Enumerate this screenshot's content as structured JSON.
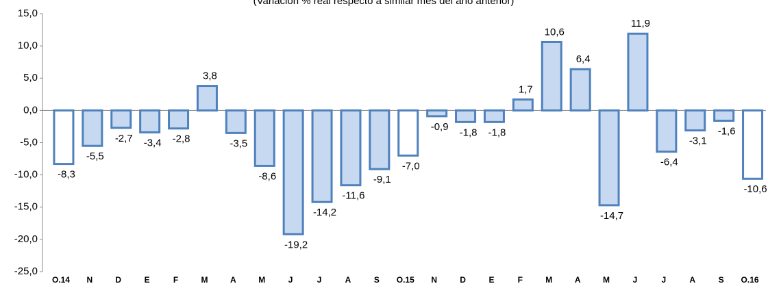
{
  "chart_data": {
    "type": "bar",
    "subtitle": "(Variación % real respecto a similar mes del año anterior)",
    "categories": [
      "O.14",
      "N",
      "D",
      "E",
      "F",
      "M",
      "A",
      "M",
      "J",
      "J",
      "A",
      "S",
      "O.15",
      "N",
      "D",
      "E",
      "F",
      "M",
      "A",
      "M",
      "J",
      "J",
      "A",
      "S",
      "O.16"
    ],
    "values": [
      -8.3,
      -5.5,
      -2.7,
      -3.4,
      -2.8,
      3.8,
      -3.5,
      -8.6,
      -19.2,
      -14.2,
      -11.6,
      -9.1,
      -7.0,
      -0.9,
      -1.8,
      -1.8,
      1.7,
      10.6,
      6.4,
      -14.7,
      11.9,
      -6.4,
      -3.1,
      -1.6,
      -10.6
    ],
    "value_labels": [
      "-8,3",
      "-5,5",
      "-2,7",
      "-3,4",
      "-2,8",
      "3,8",
      "-3,5",
      "-8,6",
      "-19,2",
      "-14,2",
      "-11,6",
      "-9,1",
      "-7,0",
      "-0,9",
      "-1,8",
      "-1,8",
      "1,7",
      "10,6",
      "6,4",
      "-14,7",
      "11,9",
      "-6,4",
      "-3,1",
      "-1,6",
      "-10,6"
    ],
    "colors": [
      "#ffffff",
      "#c6d9f1",
      "#c6d9f1",
      "#c6d9f1",
      "#c6d9f1",
      "#c6d9f1",
      "#c6d9f1",
      "#c6d9f1",
      "#c6d9f1",
      "#c6d9f1",
      "#c6d9f1",
      "#c6d9f1",
      "#ffffff",
      "#c6d9f1",
      "#c6d9f1",
      "#c6d9f1",
      "#c6d9f1",
      "#c6d9f1",
      "#c6d9f1",
      "#c6d9f1",
      "#c6d9f1",
      "#c6d9f1",
      "#c6d9f1",
      "#c6d9f1",
      "#ffffff"
    ],
    "edge_color": "#4f81bd",
    "ylim": [
      -25,
      15
    ],
    "yticks": [
      {
        "value": -25,
        "label": "-25,0"
      },
      {
        "value": -20,
        "label": "-20,0"
      },
      {
        "value": -15,
        "label": "-15,0"
      },
      {
        "value": -10,
        "label": "-10,0"
      },
      {
        "value": -5,
        "label": "-5,0"
      },
      {
        "value": 0,
        "label": "0,0"
      },
      {
        "value": 5,
        "label": "5,0"
      },
      {
        "value": 10,
        "label": "10,0"
      },
      {
        "value": 15,
        "label": "15,0"
      }
    ],
    "grid": false
  }
}
